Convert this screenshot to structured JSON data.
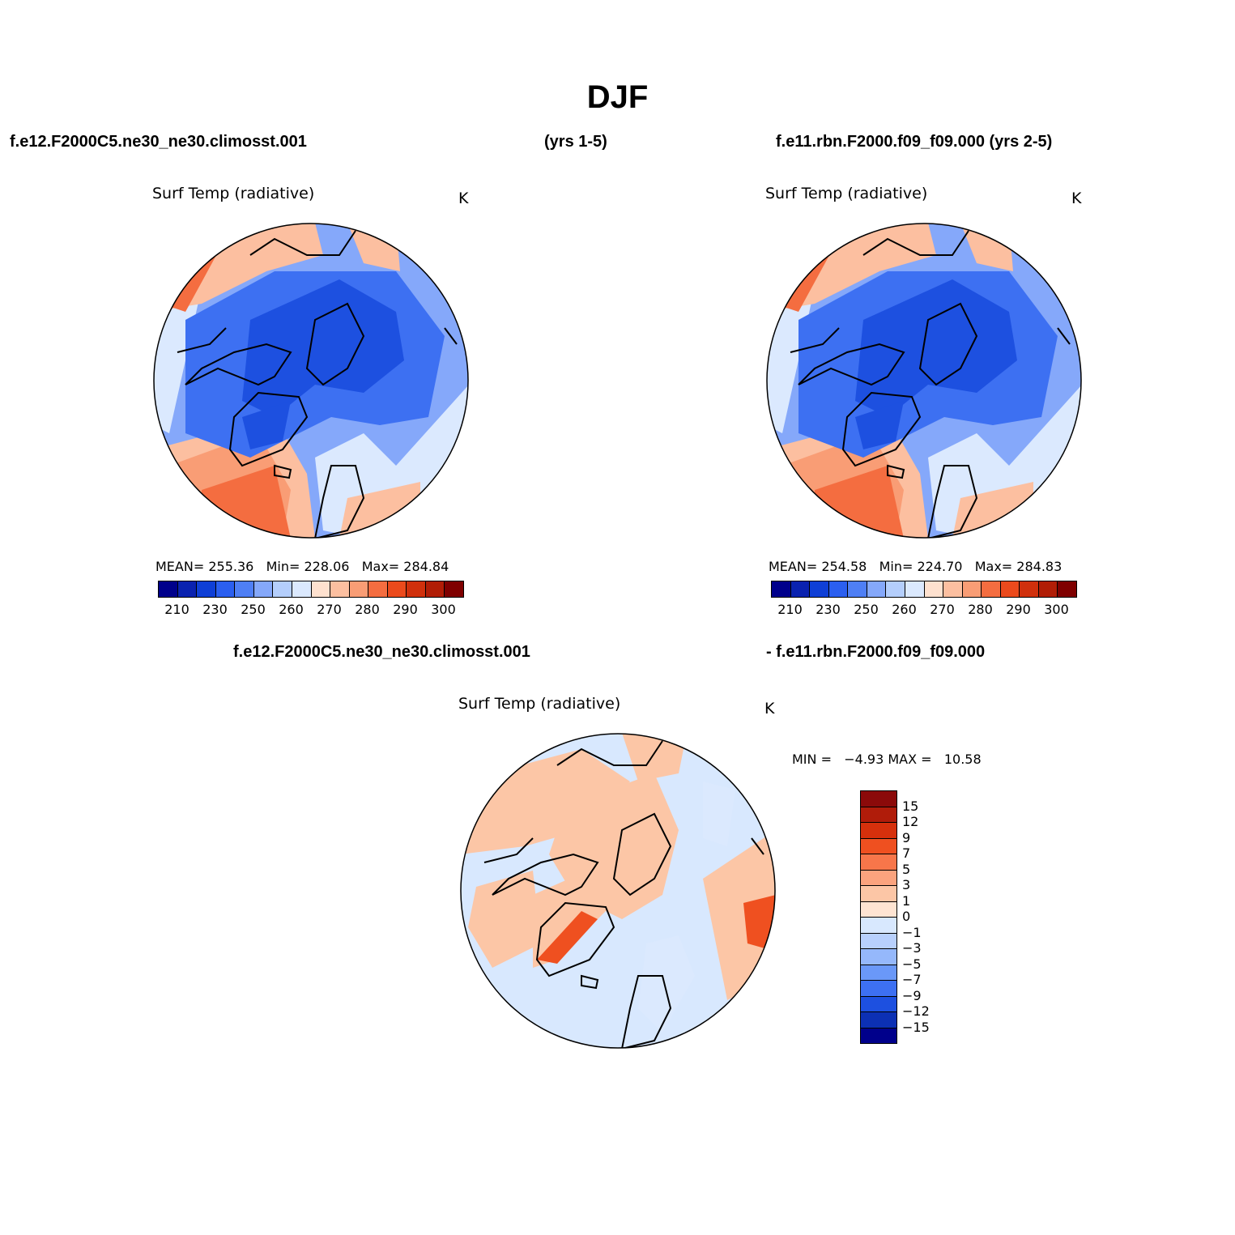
{
  "title": "DJF",
  "header": {
    "left": "f.e12.F2000C5.ne30_ne30.climosst.001",
    "middle": "(yrs 1-5)",
    "right": "f.e11.rbn.F2000.f09_f09.000 (yrs 2-5)"
  },
  "panels": {
    "top_left": {
      "title": "Surf Temp (radiative)",
      "units": "K",
      "mean_label": "MEAN=",
      "mean": "255.36",
      "min_label": "Min=",
      "min": "228.06",
      "max_label": "Max=",
      "max": "284.84"
    },
    "top_right": {
      "title": "Surf Temp (radiative)",
      "units": "K",
      "mean_label": "MEAN=",
      "mean": "254.58",
      "min_label": "Min=",
      "min": "224.70",
      "max_label": "Max=",
      "max": "284.83"
    },
    "diff": {
      "case_a": "f.e12.F2000C5.ne30_ne30.climosst.001",
      "case_b": "- f.e11.rbn.F2000.f09_f09.000",
      "title": "Surf Temp (radiative)",
      "units": "K",
      "min_label": "MIN =",
      "min": "−4.93",
      "max_label": "MAX =",
      "max": "10.58"
    }
  },
  "colorbar_abs": {
    "colors": [
      "#00008b",
      "#0a22b0",
      "#0f3fd6",
      "#2b5ff0",
      "#4f7ff5",
      "#85a8fa",
      "#b4cefc",
      "#dbe9fe",
      "#fee1cf",
      "#fcbfa0",
      "#f99d75",
      "#f46d40",
      "#eb4a1c",
      "#d0300c",
      "#b11d06",
      "#7f0000"
    ],
    "labels": [
      "210",
      "230",
      "250",
      "260",
      "270",
      "280",
      "290",
      "300"
    ]
  },
  "colorbar_diff": {
    "colors": [
      "#8b0a0a",
      "#b01c0a",
      "#d6300c",
      "#ef5020",
      "#f7764a",
      "#fba37e",
      "#fcc6a6",
      "#fee4d2",
      "#d8e8fe",
      "#b8d0fd",
      "#95b8fb",
      "#6a98f8",
      "#3d70f2",
      "#1d50e0",
      "#0c30b4",
      "#00008b"
    ],
    "labels": [
      "15",
      "12",
      "9",
      "7",
      "5",
      "3",
      "1",
      "0",
      "−1",
      "−3",
      "−5",
      "−7",
      "−9",
      "−12",
      "−15"
    ]
  },
  "map_colors": {
    "deep_blue": "#1d50e0",
    "mid_blue": "#3d70f2",
    "light_blue": "#85a8fa",
    "pale_blue": "#dbe9fe",
    "peach": "#fcbfa0",
    "salmon": "#f99d75",
    "orange": "#f46d40",
    "diff_bg": "#d8e8fe",
    "diff_warm": "#fcc6a6",
    "diff_hot": "#ef5020"
  }
}
